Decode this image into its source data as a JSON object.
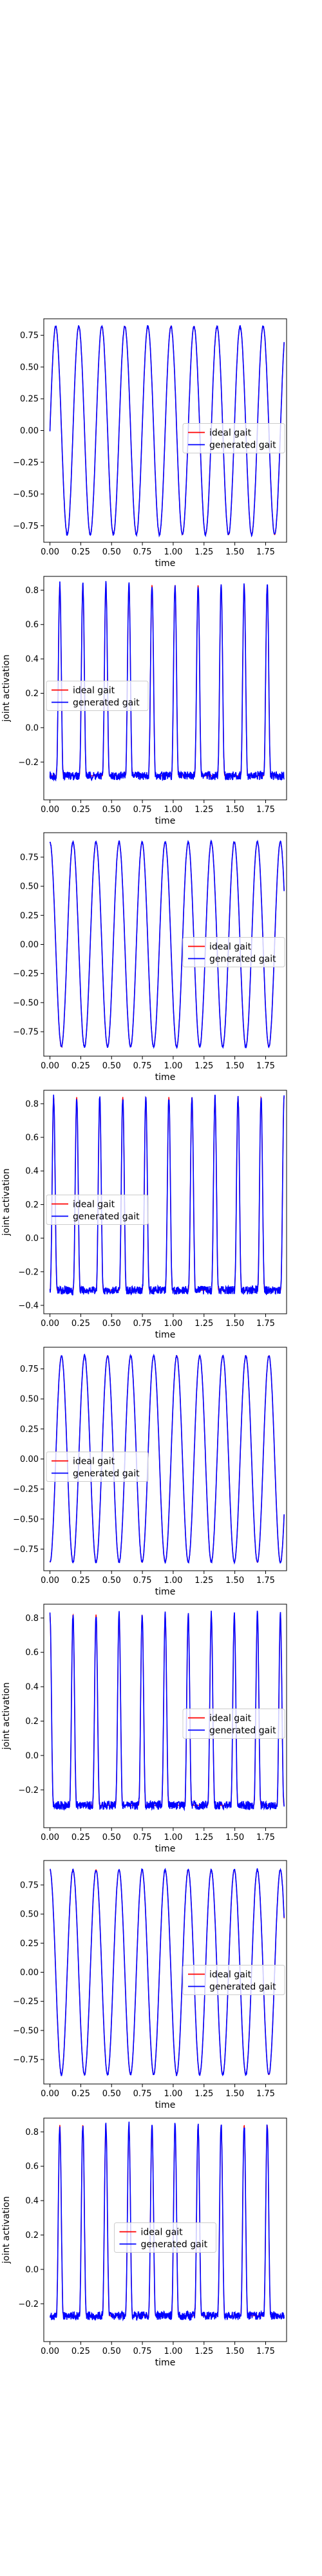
{
  "colors": {
    "ideal": "#ff0000",
    "generated": "#0000ff",
    "frame": "#000000"
  },
  "chart_data": [
    {
      "type": "line",
      "xlabel": "time",
      "ylabel": "",
      "xlim": [
        -0.05,
        1.92
      ],
      "ylim": [
        -0.88,
        0.88
      ],
      "xticks": [
        0.0,
        0.25,
        0.5,
        0.75,
        1.0,
        1.25,
        1.5,
        1.75
      ],
      "xtick_labels": [
        "0.00",
        "0.25",
        "0.50",
        "0.75",
        "1.00",
        "1.25",
        "1.50",
        "1.75"
      ],
      "yticks": [
        -0.75,
        -0.5,
        -0.25,
        0.0,
        0.25,
        0.5,
        0.75
      ],
      "ytick_labels": [
        "−0.75",
        "−0.50",
        "−0.25",
        "0.00",
        "0.25",
        "0.50",
        "0.75"
      ],
      "shape": "sine",
      "params": {
        "period": 0.187,
        "phase": 0.0,
        "amp": 0.82,
        "start": 0.0,
        "end": 1.9
      },
      "series": [
        {
          "name": "ideal gait",
          "color": "#ff0000"
        },
        {
          "name": "generated gait",
          "color": "#0000ff"
        }
      ],
      "legend": "center-right"
    },
    {
      "type": "line",
      "xlabel": "time",
      "ylabel": "joint activation",
      "xlim": [
        -0.05,
        1.92
      ],
      "ylim": [
        -0.42,
        0.88
      ],
      "xticks": [
        0.0,
        0.25,
        0.5,
        0.75,
        1.0,
        1.25,
        1.5,
        1.75
      ],
      "xtick_labels": [
        "0.00",
        "0.25",
        "0.50",
        "0.75",
        "1.00",
        "1.25",
        "1.50",
        "1.75"
      ],
      "yticks": [
        -0.2,
        0.0,
        0.2,
        0.4,
        0.6,
        0.8
      ],
      "ytick_labels": [
        "−0.2",
        "0.0",
        "0.2",
        "0.4",
        "0.6",
        "0.8"
      ],
      "shape": "pulse",
      "params": {
        "period": 0.187,
        "phase": 0.08,
        "base": -0.28,
        "peak": 0.83,
        "start": 0.0,
        "end": 1.9
      },
      "series": [
        {
          "name": "ideal gait",
          "color": "#ff0000"
        },
        {
          "name": "generated gait",
          "color": "#0000ff"
        }
      ],
      "legend": "center-left"
    },
    {
      "type": "line",
      "xlabel": "time",
      "ylabel": "",
      "xlim": [
        -0.05,
        1.92
      ],
      "ylim": [
        -0.96,
        0.96
      ],
      "xticks": [
        0.0,
        0.25,
        0.5,
        0.75,
        1.0,
        1.25,
        1.5,
        1.75
      ],
      "xtick_labels": [
        "0.00",
        "0.25",
        "0.50",
        "0.75",
        "1.00",
        "1.25",
        "1.50",
        "1.75"
      ],
      "yticks": [
        -0.75,
        -0.5,
        -0.25,
        0.0,
        0.25,
        0.5,
        0.75
      ],
      "ytick_labels": [
        "−0.75",
        "−0.50",
        "−0.25",
        "0.00",
        "0.25",
        "0.50",
        "0.75"
      ],
      "shape": "sine",
      "params": {
        "period": 0.187,
        "phase": -0.047,
        "amp": 0.88,
        "start": 0.0,
        "end": 1.9
      },
      "series": [
        {
          "name": "ideal gait",
          "color": "#ff0000"
        },
        {
          "name": "generated gait",
          "color": "#0000ff"
        }
      ],
      "legend": "center-right"
    },
    {
      "type": "line",
      "xlabel": "time",
      "ylabel": "joint activation",
      "xlim": [
        -0.05,
        1.92
      ],
      "ylim": [
        -0.45,
        0.88
      ],
      "xticks": [
        0.0,
        0.25,
        0.5,
        0.75,
        1.0,
        1.25,
        1.5,
        1.75
      ],
      "xtick_labels": [
        "0.00",
        "0.25",
        "0.50",
        "0.75",
        "1.00",
        "1.25",
        "1.50",
        "1.75"
      ],
      "yticks": [
        -0.4,
        -0.2,
        0.0,
        0.2,
        0.4,
        0.6,
        0.8
      ],
      "ytick_labels": [
        "−0.4",
        "−0.2",
        "0.0",
        "0.2",
        "0.4",
        "0.6",
        "0.8"
      ],
      "shape": "pulse",
      "params": {
        "period": 0.187,
        "phase": 0.03,
        "base": -0.31,
        "peak": 0.84,
        "start": 0.0,
        "end": 1.9
      },
      "series": [
        {
          "name": "ideal gait",
          "color": "#ff0000"
        },
        {
          "name": "generated gait",
          "color": "#0000ff"
        }
      ],
      "legend": "center-left"
    },
    {
      "type": "line",
      "xlabel": "time",
      "ylabel": "",
      "xlim": [
        -0.05,
        1.92
      ],
      "ylim": [
        -0.93,
        0.93
      ],
      "xticks": [
        0.0,
        0.25,
        0.5,
        0.75,
        1.0,
        1.25,
        1.5,
        1.75
      ],
      "xtick_labels": [
        "0.00",
        "0.25",
        "0.50",
        "0.75",
        "1.00",
        "1.25",
        "1.50",
        "1.75"
      ],
      "yticks": [
        -0.75,
        -0.5,
        -0.25,
        0.0,
        0.25,
        0.5,
        0.75
      ],
      "ytick_labels": [
        "−0.75",
        "−0.50",
        "−0.25",
        "0.00",
        "0.25",
        "0.50",
        "0.75"
      ],
      "shape": "sine",
      "params": {
        "period": 0.187,
        "phase": 0.047,
        "amp": 0.86,
        "start": 0.0,
        "end": 1.9
      },
      "series": [
        {
          "name": "ideal gait",
          "color": "#ff0000"
        },
        {
          "name": "generated gait",
          "color": "#0000ff"
        }
      ],
      "legend": "center-left"
    },
    {
      "type": "line",
      "xlabel": "time",
      "ylabel": "joint activation",
      "xlim": [
        -0.05,
        1.92
      ],
      "ylim": [
        -0.42,
        0.88
      ],
      "xticks": [
        0.0,
        0.25,
        0.5,
        0.75,
        1.0,
        1.25,
        1.5,
        1.75
      ],
      "xtick_labels": [
        "0.00",
        "0.25",
        "0.50",
        "0.75",
        "1.00",
        "1.25",
        "1.50",
        "1.75"
      ],
      "yticks": [
        -0.2,
        0.0,
        0.2,
        0.4,
        0.6,
        0.8
      ],
      "ytick_labels": [
        "−0.2",
        "0.0",
        "0.2",
        "0.4",
        "0.6",
        "0.8"
      ],
      "shape": "pulse",
      "params": {
        "period": 0.187,
        "phase": 0.0,
        "base": -0.29,
        "peak": 0.82,
        "start": 0.0,
        "end": 1.9
      },
      "series": [
        {
          "name": "ideal gait",
          "color": "#ff0000"
        },
        {
          "name": "generated gait",
          "color": "#0000ff"
        }
      ],
      "legend": "center-right"
    },
    {
      "type": "line",
      "xlabel": "time",
      "ylabel": "",
      "xlim": [
        -0.05,
        1.92
      ],
      "ylim": [
        -0.96,
        0.96
      ],
      "xticks": [
        0.0,
        0.25,
        0.5,
        0.75,
        1.0,
        1.25,
        1.5,
        1.75
      ],
      "xtick_labels": [
        "0.00",
        "0.25",
        "0.50",
        "0.75",
        "1.00",
        "1.25",
        "1.50",
        "1.75"
      ],
      "yticks": [
        -0.75,
        -0.5,
        -0.25,
        0.0,
        0.25,
        0.5,
        0.75
      ],
      "ytick_labels": [
        "−0.75",
        "−0.50",
        "−0.25",
        "0.00",
        "0.25",
        "0.50",
        "0.75"
      ],
      "shape": "sine",
      "params": {
        "period": 0.187,
        "phase": -0.047,
        "amp": 0.88,
        "start": 0.0,
        "end": 1.9
      },
      "series": [
        {
          "name": "ideal gait",
          "color": "#ff0000"
        },
        {
          "name": "generated gait",
          "color": "#0000ff"
        }
      ],
      "legend": "center-right"
    },
    {
      "type": "line",
      "xlabel": "time",
      "ylabel": "joint activation",
      "xlim": [
        -0.05,
        1.92
      ],
      "ylim": [
        -0.42,
        0.88
      ],
      "xticks": [
        0.0,
        0.25,
        0.5,
        0.75,
        1.0,
        1.25,
        1.5,
        1.75
      ],
      "xtick_labels": [
        "0.00",
        "0.25",
        "0.50",
        "0.75",
        "1.00",
        "1.25",
        "1.50",
        "1.75"
      ],
      "yticks": [
        -0.2,
        0.0,
        0.2,
        0.4,
        0.6,
        0.8
      ],
      "ytick_labels": [
        "−0.2",
        "0.0",
        "0.2",
        "0.4",
        "0.6",
        "0.8"
      ],
      "shape": "pulse",
      "params": {
        "period": 0.187,
        "phase": 0.08,
        "base": -0.27,
        "peak": 0.84,
        "start": 0.0,
        "end": 1.9
      },
      "series": [
        {
          "name": "ideal gait",
          "color": "#ff0000"
        },
        {
          "name": "generated gait",
          "color": "#0000ff"
        }
      ],
      "legend": "center"
    }
  ]
}
